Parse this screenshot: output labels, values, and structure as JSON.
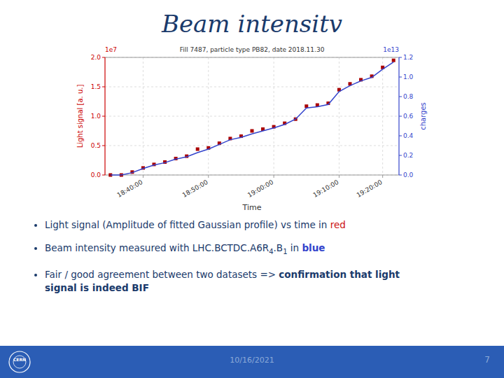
{
  "chart_data": {
    "type": "scatter",
    "title": "Beam intensitv",
    "subtitle": "Fill 7487, particle type PB82, date 2018.11.30",
    "xlabel": "Time",
    "ylabel": "Light signal [a. u.]",
    "y2label": "charges",
    "categories": [
      null,
      null,
      null,
      "18:40:00",
      null,
      null,
      null,
      null,
      null,
      "18:50:00",
      null,
      null,
      null,
      null,
      null,
      "19:00:00",
      null,
      null,
      null,
      null,
      null,
      "19:10:00",
      null,
      null,
      null,
      "19:20:00",
      null
    ],
    "series": [
      {
        "type": "scatter",
        "color": "#aa0000",
        "marker": "square",
        "values": [
          0.0,
          0.0,
          0.05,
          0.12,
          0.18,
          0.22,
          0.28,
          0.32,
          0.44,
          0.46,
          0.54,
          0.62,
          0.66,
          0.75,
          0.78,
          0.82,
          0.88,
          0.95,
          1.17,
          1.19,
          1.22,
          1.45,
          1.55,
          1.62,
          1.68,
          1.83,
          1.95
        ]
      },
      {
        "type": "line",
        "color": "#3344cc",
        "axis": "y2",
        "values": [
          0.0,
          0.0,
          0.024,
          0.066,
          0.102,
          0.126,
          0.162,
          0.186,
          0.228,
          0.264,
          0.312,
          0.36,
          0.384,
          0.42,
          0.45,
          0.48,
          0.516,
          0.57,
          0.684,
          0.696,
          0.72,
          0.852,
          0.912,
          0.96,
          0.996,
          1.08,
          1.152
        ]
      }
    ],
    "ylim": [
      0.0,
      2.0
    ],
    "yticks": [
      {
        "value": 0.0,
        "label": "0.0"
      },
      0.5,
      {
        "value": 1.0,
        "label": "1.0"
      },
      1.5,
      {
        "value": 2.0,
        "label": "2.0"
      }
    ],
    "y2lim": [
      0.0,
      1.2
    ],
    "y2ticks": [
      {
        "value": 0.0,
        "label": "0.0"
      },
      0.2,
      0.4,
      0.6,
      0.8,
      {
        "value": 1.0,
        "label": "1.0"
      },
      1.2
    ],
    "grid": true,
    "annotations": [
      "1e7",
      "1e13",
      "Light signal (Amplitude of fitted Gaussian profile) vs time in ",
      "red",
      "Beam intensity measured with LHC.BCTDC.A6R",
      "4",
      ".B",
      "1",
      " in ",
      "blue",
      "Fair / good agreement between two datasets => ",
      "confirmation that light",
      "signal is indeed BIF",
      "10/16/2021",
      "7",
      "CERN"
    ]
  }
}
